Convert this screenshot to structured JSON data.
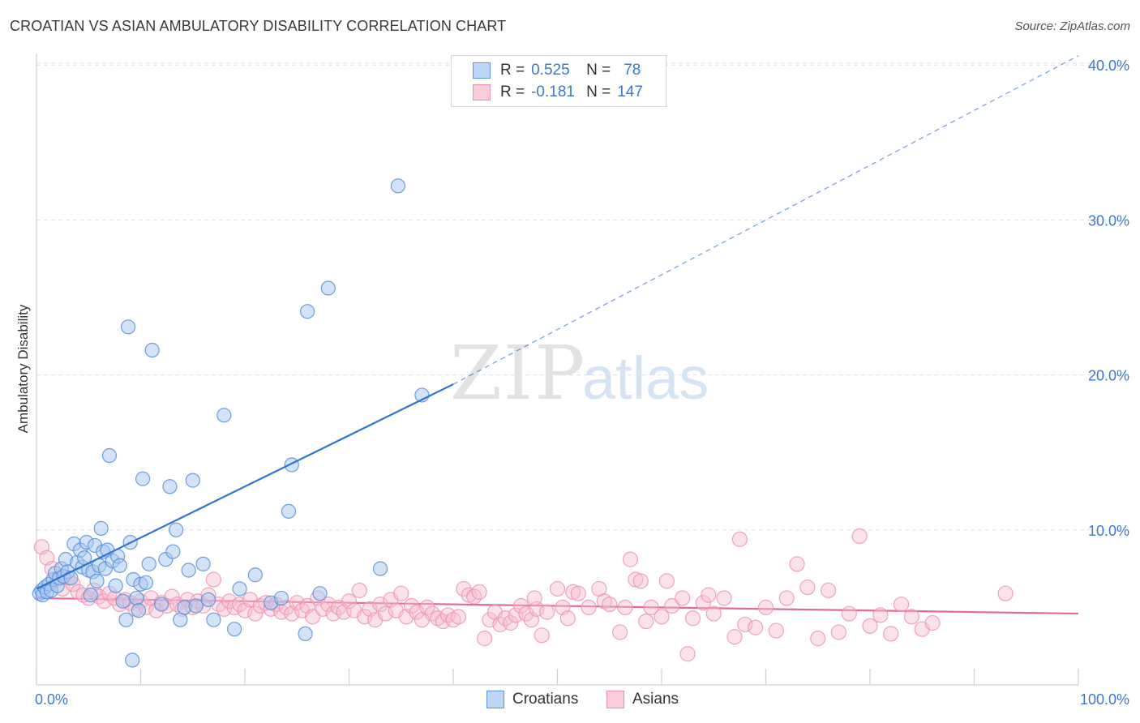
{
  "title": "CROATIAN VS ASIAN AMBULATORY DISABILITY CORRELATION CHART",
  "source": "Source: ZipAtlas.com",
  "watermark": {
    "zip": "ZIP",
    "atlas": "atlas"
  },
  "legend": {
    "r_label": "R =",
    "n_label": "N =",
    "croatians": {
      "r": "0.525",
      "n": "78"
    },
    "asians": {
      "r": "-0.181",
      "n": "147"
    }
  },
  "colors": {
    "croatians_fill": "#a8c8f0",
    "croatians_stroke": "#5b93dc",
    "croatians_line": "#2f74d0",
    "asians_fill": "#f7bdd0",
    "asians_stroke": "#ee8fad",
    "asians_line": "#e46a93",
    "axis_text": "#3b78d0",
    "grid": "#e0e0e0"
  },
  "chart_data": {
    "type": "scatter",
    "title": "CROATIAN VS ASIAN AMBULATORY DISABILITY CORRELATION CHART",
    "xlabel": "",
    "ylabel": "Ambulatory Disability",
    "xlim": [
      0,
      100
    ],
    "ylim": [
      0,
      42
    ],
    "x_tick_labels": [
      "0.0%",
      "100.0%"
    ],
    "y_ticks": [
      10,
      20,
      30,
      40
    ],
    "y_tick_labels": [
      "10.0%",
      "20.0%",
      "30.0%",
      "40.0%"
    ],
    "grid": true,
    "legend_position": "top-center",
    "series": [
      {
        "name": "Croatians",
        "r": 0.525,
        "n": 78,
        "trend": {
          "x0": 0,
          "y0": 6.2,
          "x1": 40,
          "y1": 19.4,
          "dash_to_x": 100,
          "dash_to_y": 40.6
        },
        "points": [
          [
            0.3,
            5.9
          ],
          [
            0.5,
            6.1
          ],
          [
            0.6,
            5.8
          ],
          [
            0.8,
            6.3
          ],
          [
            1.0,
            6.0
          ],
          [
            1.2,
            6.5
          ],
          [
            1.4,
            6.1
          ],
          [
            1.6,
            6.8
          ],
          [
            1.8,
            7.2
          ],
          [
            2.0,
            6.4
          ],
          [
            2.2,
            6.9
          ],
          [
            2.4,
            7.5
          ],
          [
            2.6,
            7.0
          ],
          [
            2.8,
            8.1
          ],
          [
            3.0,
            7.3
          ],
          [
            3.3,
            6.9
          ],
          [
            3.6,
            9.1
          ],
          [
            3.9,
            7.9
          ],
          [
            4.2,
            8.7
          ],
          [
            4.4,
            7.6
          ],
          [
            4.6,
            8.2
          ],
          [
            4.8,
            9.2
          ],
          [
            5.0,
            7.4
          ],
          [
            5.2,
            5.8
          ],
          [
            5.4,
            7.3
          ],
          [
            5.6,
            9.0
          ],
          [
            5.8,
            6.7
          ],
          [
            6.0,
            7.7
          ],
          [
            6.2,
            10.1
          ],
          [
            6.4,
            8.6
          ],
          [
            6.6,
            7.5
          ],
          [
            6.8,
            8.7
          ],
          [
            7.0,
            14.8
          ],
          [
            7.3,
            8.0
          ],
          [
            7.6,
            6.4
          ],
          [
            7.8,
            8.3
          ],
          [
            8.0,
            7.7
          ],
          [
            8.3,
            5.4
          ],
          [
            8.6,
            4.2
          ],
          [
            8.8,
            23.1
          ],
          [
            9.0,
            9.2
          ],
          [
            9.3,
            6.8
          ],
          [
            9.6,
            5.6
          ],
          [
            9.8,
            4.8
          ],
          [
            10.0,
            6.5
          ],
          [
            10.2,
            13.3
          ],
          [
            10.5,
            6.6
          ],
          [
            10.8,
            7.8
          ],
          [
            11.1,
            21.6
          ],
          [
            12.0,
            5.2
          ],
          [
            12.4,
            8.1
          ],
          [
            12.8,
            12.8
          ],
          [
            13.1,
            8.6
          ],
          [
            13.4,
            10.0
          ],
          [
            13.8,
            4.2
          ],
          [
            14.2,
            5.0
          ],
          [
            14.6,
            7.4
          ],
          [
            15.0,
            13.2
          ],
          [
            15.3,
            5.1
          ],
          [
            16.0,
            7.8
          ],
          [
            16.5,
            5.5
          ],
          [
            17.0,
            4.2
          ],
          [
            18.0,
            17.4
          ],
          [
            19.0,
            3.6
          ],
          [
            19.5,
            6.2
          ],
          [
            21.0,
            7.1
          ],
          [
            22.5,
            5.3
          ],
          [
            23.5,
            5.6
          ],
          [
            24.2,
            11.2
          ],
          [
            24.5,
            14.2
          ],
          [
            25.8,
            3.3
          ],
          [
            27.2,
            5.9
          ],
          [
            26.0,
            24.1
          ],
          [
            28.0,
            25.6
          ],
          [
            33.0,
            7.5
          ],
          [
            34.7,
            32.2
          ],
          [
            37.0,
            18.7
          ],
          [
            9.2,
            1.6
          ]
        ]
      },
      {
        "name": "Asians",
        "r": -0.181,
        "n": 147,
        "trend": {
          "x0": 0,
          "y0": 5.6,
          "x1": 100,
          "y1": 4.6
        },
        "points": [
          [
            0.5,
            8.9
          ],
          [
            1.0,
            8.2
          ],
          [
            1.5,
            7.5
          ],
          [
            2.0,
            6.8
          ],
          [
            2.5,
            6.2
          ],
          [
            3.0,
            6.9
          ],
          [
            3.5,
            6.5
          ],
          [
            4.0,
            6.0
          ],
          [
            4.5,
            5.8
          ],
          [
            5.0,
            5.6
          ],
          [
            5.5,
            6.1
          ],
          [
            6.0,
            5.7
          ],
          [
            6.5,
            5.4
          ],
          [
            7.0,
            5.9
          ],
          [
            7.5,
            5.6
          ],
          [
            8.0,
            5.2
          ],
          [
            8.5,
            5.5
          ],
          [
            9.0,
            5.3
          ],
          [
            9.5,
            4.9
          ],
          [
            10.0,
            5.4
          ],
          [
            10.5,
            5.0
          ],
          [
            11.0,
            5.6
          ],
          [
            11.5,
            4.8
          ],
          [
            12.0,
            5.3
          ],
          [
            12.5,
            5.1
          ],
          [
            13.0,
            5.7
          ],
          [
            13.5,
            5.2
          ],
          [
            14.0,
            4.9
          ],
          [
            14.5,
            5.5
          ],
          [
            15.0,
            5.0
          ],
          [
            15.5,
            5.4
          ],
          [
            16.0,
            5.1
          ],
          [
            16.5,
            5.8
          ],
          [
            17.0,
            6.8
          ],
          [
            17.5,
            5.2
          ],
          [
            18.0,
            4.9
          ],
          [
            18.5,
            5.4
          ],
          [
            19.0,
            5.0
          ],
          [
            19.5,
            5.2
          ],
          [
            20.0,
            4.8
          ],
          [
            20.5,
            5.5
          ],
          [
            21.0,
            4.6
          ],
          [
            21.5,
            5.1
          ],
          [
            22.0,
            5.3
          ],
          [
            22.5,
            4.9
          ],
          [
            23.0,
            5.2
          ],
          [
            23.5,
            4.7
          ],
          [
            24.0,
            5.0
          ],
          [
            24.5,
            4.6
          ],
          [
            25.0,
            5.3
          ],
          [
            25.5,
            4.8
          ],
          [
            26.0,
            5.1
          ],
          [
            26.5,
            4.4
          ],
          [
            27.0,
            5.6
          ],
          [
            27.5,
            4.9
          ],
          [
            28.0,
            5.2
          ],
          [
            28.5,
            4.6
          ],
          [
            29.0,
            5.0
          ],
          [
            29.5,
            4.7
          ],
          [
            30.0,
            5.4
          ],
          [
            30.5,
            4.8
          ],
          [
            31.0,
            6.1
          ],
          [
            31.5,
            4.4
          ],
          [
            32.0,
            4.9
          ],
          [
            32.5,
            4.2
          ],
          [
            33.0,
            5.2
          ],
          [
            33.5,
            4.6
          ],
          [
            34.0,
            5.5
          ],
          [
            34.5,
            4.8
          ],
          [
            35.0,
            5.9
          ],
          [
            35.5,
            4.4
          ],
          [
            36.0,
            5.1
          ],
          [
            36.5,
            4.7
          ],
          [
            37.0,
            4.2
          ],
          [
            37.5,
            5.0
          ],
          [
            38.0,
            4.6
          ],
          [
            38.5,
            4.3
          ],
          [
            39.0,
            4.1
          ],
          [
            39.5,
            4.5
          ],
          [
            40.0,
            4.2
          ],
          [
            40.5,
            4.4
          ],
          [
            41.0,
            6.2
          ],
          [
            41.5,
            5.8
          ],
          [
            42.0,
            5.7
          ],
          [
            42.5,
            6.0
          ],
          [
            43.0,
            3.0
          ],
          [
            43.5,
            4.2
          ],
          [
            44.0,
            4.7
          ],
          [
            44.5,
            3.9
          ],
          [
            45.0,
            4.3
          ],
          [
            45.5,
            4.0
          ],
          [
            46.0,
            4.5
          ],
          [
            46.5,
            5.1
          ],
          [
            47.0,
            4.6
          ],
          [
            47.5,
            4.2
          ],
          [
            48.0,
            4.9
          ],
          [
            48.5,
            3.2
          ],
          [
            49.0,
            4.7
          ],
          [
            50.0,
            6.2
          ],
          [
            50.5,
            5.0
          ],
          [
            51.0,
            4.3
          ],
          [
            51.5,
            6.0
          ],
          [
            52.0,
            5.9
          ],
          [
            53.0,
            5.0
          ],
          [
            54.0,
            6.2
          ],
          [
            54.5,
            5.4
          ],
          [
            55.0,
            5.2
          ],
          [
            56.0,
            3.4
          ],
          [
            56.5,
            5.0
          ],
          [
            57.0,
            8.1
          ],
          [
            57.5,
            6.8
          ],
          [
            58.0,
            6.7
          ],
          [
            58.5,
            4.1
          ],
          [
            59.0,
            5.0
          ],
          [
            60.0,
            4.4
          ],
          [
            60.5,
            6.7
          ],
          [
            61.0,
            5.1
          ],
          [
            62.0,
            5.6
          ],
          [
            62.5,
            2.0
          ],
          [
            63.0,
            4.3
          ],
          [
            64.0,
            5.3
          ],
          [
            64.5,
            5.8
          ],
          [
            65.0,
            4.6
          ],
          [
            66.0,
            5.6
          ],
          [
            67.0,
            3.1
          ],
          [
            67.5,
            9.4
          ],
          [
            68.0,
            3.9
          ],
          [
            69.0,
            3.7
          ],
          [
            70.0,
            5.0
          ],
          [
            71.0,
            3.5
          ],
          [
            72.0,
            5.6
          ],
          [
            73.0,
            7.8
          ],
          [
            74.0,
            6.3
          ],
          [
            75.0,
            3.0
          ],
          [
            76.0,
            6.1
          ],
          [
            77.0,
            3.4
          ],
          [
            78.0,
            4.6
          ],
          [
            79.0,
            9.6
          ],
          [
            80.0,
            3.8
          ],
          [
            81.0,
            4.5
          ],
          [
            82.0,
            3.3
          ],
          [
            83.0,
            5.2
          ],
          [
            84.0,
            4.4
          ],
          [
            85.0,
            3.6
          ],
          [
            86.0,
            4.0
          ],
          [
            93.0,
            5.9
          ],
          [
            47.8,
            5.6
          ]
        ]
      }
    ]
  },
  "bottom_legend": {
    "croatians": "Croatians",
    "asians": "Asians"
  }
}
